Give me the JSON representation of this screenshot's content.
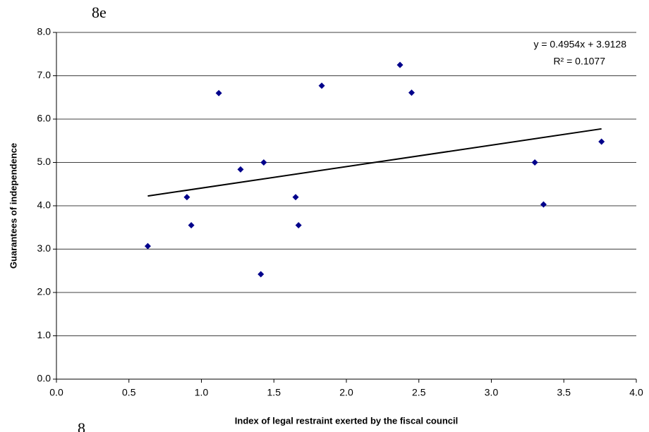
{
  "chart_data": {
    "type": "scatter",
    "annotations": [
      "8e",
      "8"
    ],
    "xlabel": "Index of legal restraint exerted by the fiscal council",
    "ylabel": "Guarantees of independence",
    "series": [
      {
        "color": "#00008b",
        "x": [
          0.63,
          0.9,
          0.93,
          1.12,
          1.27,
          1.41,
          1.43,
          1.65,
          1.67,
          1.83,
          2.37,
          2.45,
          3.3,
          3.36,
          3.76
        ],
        "values": [
          3.07,
          4.2,
          3.55,
          6.6,
          4.84,
          2.42,
          5.0,
          4.2,
          3.55,
          6.77,
          7.25,
          6.61,
          5.0,
          4.03,
          5.48
        ]
      }
    ],
    "trendline": {
      "slope": 0.4954,
      "intercept": 3.9128,
      "color": "#000000",
      "equation": "y = 0.4954x + 3.9128",
      "r_squared": "R² = 0.1077"
    },
    "xlim": [
      0,
      4
    ],
    "ylim": [
      0,
      8
    ],
    "xticks": [
      {
        "value": 0,
        "label": "0.0"
      },
      {
        "value": 0.5,
        "label": "0.5"
      },
      {
        "value": 1,
        "label": "1.0"
      },
      {
        "value": 1.5,
        "label": "1.5"
      },
      {
        "value": 2,
        "label": "2.0"
      },
      {
        "value": 2.5,
        "label": "2.5"
      },
      {
        "value": 3,
        "label": "3.0"
      },
      {
        "value": 3.5,
        "label": "3.5"
      },
      {
        "value": 4,
        "label": "4.0"
      }
    ],
    "yticks": [
      {
        "value": 0,
        "label": "0.0"
      },
      {
        "value": 1,
        "label": "1.0"
      },
      {
        "value": 2,
        "label": "2.0"
      },
      {
        "value": 3,
        "label": "3.0"
      },
      {
        "value": 4,
        "label": "4.0"
      },
      {
        "value": 5,
        "label": "5.0"
      },
      {
        "value": 6,
        "label": "6.0"
      },
      {
        "value": 7,
        "label": "7.0"
      },
      {
        "value": 8,
        "label": "8.0"
      }
    ],
    "grid": true
  }
}
